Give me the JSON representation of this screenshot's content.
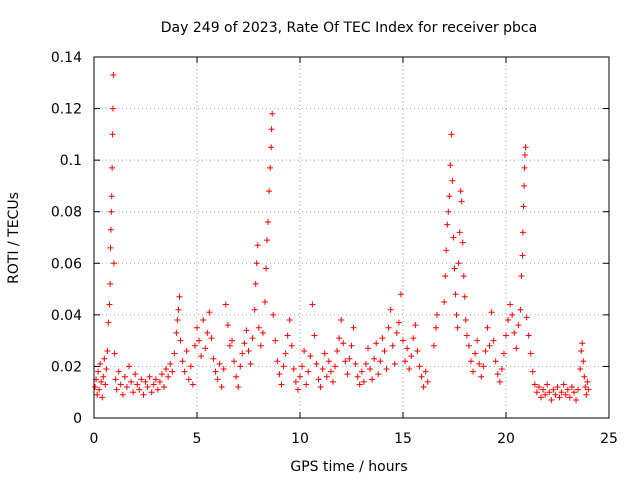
{
  "chart_data": {
    "type": "scatter",
    "title": "Day 249 of 2023, Rate Of TEC Index for receiver pbca",
    "xlabel": "GPS time / hours",
    "ylabel": "ROTI / TECUs",
    "xlim": [
      0,
      25
    ],
    "ylim": [
      0,
      0.14
    ],
    "xticks": [
      "0",
      "5",
      "10",
      "15",
      "20",
      "25"
    ],
    "yticks": [
      "0",
      "0.02",
      "0.04",
      "0.06",
      "0.08",
      "0.1",
      "0.12",
      "0.14"
    ],
    "grid": true,
    "marker": "plus",
    "color": "#ff0000",
    "series": [
      {
        "points": [
          [
            0.05,
            0.012
          ],
          [
            0.1,
            0.015
          ],
          [
            0.15,
            0.009
          ],
          [
            0.2,
            0.018
          ],
          [
            0.25,
            0.011
          ],
          [
            0.3,
            0.021
          ],
          [
            0.35,
            0.014
          ],
          [
            0.4,
            0.008
          ],
          [
            0.45,
            0.016
          ],
          [
            0.5,
            0.023
          ],
          [
            0.55,
            0.013
          ],
          [
            0.6,
            0.019
          ],
          [
            0.65,
            0.026
          ],
          [
            0.7,
            0.037
          ],
          [
            0.75,
            0.044
          ],
          [
            0.78,
            0.052
          ],
          [
            0.8,
            0.066
          ],
          [
            0.82,
            0.073
          ],
          [
            0.84,
            0.08
          ],
          [
            0.86,
            0.086
          ],
          [
            0.88,
            0.097
          ],
          [
            0.9,
            0.11
          ],
          [
            0.92,
            0.12
          ],
          [
            0.94,
            0.133
          ],
          [
            0.97,
            0.06
          ],
          [
            1.0,
            0.025
          ],
          [
            1.05,
            0.015
          ],
          [
            1.1,
            0.011
          ],
          [
            1.2,
            0.018
          ],
          [
            1.3,
            0.013
          ],
          [
            1.4,
            0.009
          ],
          [
            1.5,
            0.016
          ],
          [
            1.6,
            0.012
          ],
          [
            1.7,
            0.02
          ],
          [
            1.8,
            0.014
          ],
          [
            1.9,
            0.01
          ],
          [
            2.0,
            0.017
          ],
          [
            2.1,
            0.013
          ],
          [
            2.2,
            0.011
          ],
          [
            2.3,
            0.015
          ],
          [
            2.4,
            0.009
          ],
          [
            2.5,
            0.014
          ],
          [
            2.6,
            0.012
          ],
          [
            2.7,
            0.016
          ],
          [
            2.8,
            0.01
          ],
          [
            2.9,
            0.013
          ],
          [
            3.0,
            0.015
          ],
          [
            3.1,
            0.011
          ],
          [
            3.2,
            0.014
          ],
          [
            3.3,
            0.017
          ],
          [
            3.4,
            0.012
          ],
          [
            3.5,
            0.019
          ],
          [
            3.6,
            0.016
          ],
          [
            3.7,
            0.021
          ],
          [
            3.8,
            0.018
          ],
          [
            3.9,
            0.025
          ],
          [
            4.0,
            0.033
          ],
          [
            4.05,
            0.038
          ],
          [
            4.1,
            0.042
          ],
          [
            4.15,
            0.047
          ],
          [
            4.2,
            0.03
          ],
          [
            4.3,
            0.022
          ],
          [
            4.4,
            0.018
          ],
          [
            4.5,
            0.026
          ],
          [
            4.6,
            0.015
          ],
          [
            4.7,
            0.02
          ],
          [
            4.8,
            0.013
          ],
          [
            4.9,
            0.028
          ],
          [
            5.0,
            0.035
          ],
          [
            5.1,
            0.03
          ],
          [
            5.2,
            0.024
          ],
          [
            5.3,
            0.038
          ],
          [
            5.4,
            0.027
          ],
          [
            5.5,
            0.033
          ],
          [
            5.6,
            0.041
          ],
          [
            5.7,
            0.031
          ],
          [
            5.8,
            0.023
          ],
          [
            5.9,
            0.018
          ],
          [
            6.0,
            0.015
          ],
          [
            6.1,
            0.021
          ],
          [
            6.2,
            0.012
          ],
          [
            6.3,
            0.019
          ],
          [
            6.4,
            0.044
          ],
          [
            6.5,
            0.036
          ],
          [
            6.6,
            0.028
          ],
          [
            6.7,
            0.03
          ],
          [
            6.8,
            0.022
          ],
          [
            6.9,
            0.016
          ],
          [
            7.0,
            0.012
          ],
          [
            7.1,
            0.02
          ],
          [
            7.2,
            0.025
          ],
          [
            7.3,
            0.029
          ],
          [
            7.4,
            0.034
          ],
          [
            7.5,
            0.026
          ],
          [
            7.6,
            0.021
          ],
          [
            7.7,
            0.031
          ],
          [
            7.8,
            0.042
          ],
          [
            7.85,
            0.052
          ],
          [
            7.9,
            0.06
          ],
          [
            7.95,
            0.067
          ],
          [
            8.0,
            0.035
          ],
          [
            8.1,
            0.028
          ],
          [
            8.2,
            0.033
          ],
          [
            8.3,
            0.045
          ],
          [
            8.35,
            0.058
          ],
          [
            8.4,
            0.069
          ],
          [
            8.45,
            0.076
          ],
          [
            8.5,
            0.088
          ],
          [
            8.55,
            0.097
          ],
          [
            8.6,
            0.105
          ],
          [
            8.62,
            0.112
          ],
          [
            8.65,
            0.118
          ],
          [
            8.7,
            0.04
          ],
          [
            8.8,
            0.03
          ],
          [
            8.9,
            0.022
          ],
          [
            9.0,
            0.017
          ],
          [
            9.1,
            0.013
          ],
          [
            9.2,
            0.02
          ],
          [
            9.3,
            0.025
          ],
          [
            9.4,
            0.032
          ],
          [
            9.5,
            0.038
          ],
          [
            9.6,
            0.028
          ],
          [
            9.7,
            0.019
          ],
          [
            9.8,
            0.014
          ],
          [
            9.9,
            0.011
          ],
          [
            10.0,
            0.016
          ],
          [
            10.1,
            0.02
          ],
          [
            10.2,
            0.026
          ],
          [
            10.3,
            0.013
          ],
          [
            10.4,
            0.018
          ],
          [
            10.5,
            0.024
          ],
          [
            10.6,
            0.044
          ],
          [
            10.7,
            0.032
          ],
          [
            10.8,
            0.021
          ],
          [
            10.9,
            0.015
          ],
          [
            11.0,
            0.012
          ],
          [
            11.1,
            0.019
          ],
          [
            11.2,
            0.025
          ],
          [
            11.3,
            0.016
          ],
          [
            11.4,
            0.022
          ],
          [
            11.5,
            0.018
          ],
          [
            11.6,
            0.014
          ],
          [
            11.7,
            0.02
          ],
          [
            11.8,
            0.026
          ],
          [
            11.9,
            0.031
          ],
          [
            12.0,
            0.038
          ],
          [
            12.1,
            0.029
          ],
          [
            12.2,
            0.022
          ],
          [
            12.3,
            0.017
          ],
          [
            12.4,
            0.023
          ],
          [
            12.5,
            0.028
          ],
          [
            12.6,
            0.035
          ],
          [
            12.7,
            0.021
          ],
          [
            12.8,
            0.016
          ],
          [
            12.9,
            0.013
          ],
          [
            13.0,
            0.018
          ],
          [
            13.1,
            0.014
          ],
          [
            13.2,
            0.021
          ],
          [
            13.3,
            0.027
          ],
          [
            13.4,
            0.019
          ],
          [
            13.5,
            0.015
          ],
          [
            13.6,
            0.023
          ],
          [
            13.7,
            0.029
          ],
          [
            13.8,
            0.017
          ],
          [
            13.9,
            0.022
          ],
          [
            14.0,
            0.031
          ],
          [
            14.1,
            0.026
          ],
          [
            14.2,
            0.019
          ],
          [
            14.3,
            0.035
          ],
          [
            14.4,
            0.042
          ],
          [
            14.5,
            0.028
          ],
          [
            14.6,
            0.021
          ],
          [
            14.7,
            0.033
          ],
          [
            14.8,
            0.037
          ],
          [
            14.9,
            0.048
          ],
          [
            15.0,
            0.03
          ],
          [
            15.1,
            0.022
          ],
          [
            15.2,
            0.027
          ],
          [
            15.3,
            0.019
          ],
          [
            15.4,
            0.024
          ],
          [
            15.5,
            0.031
          ],
          [
            15.6,
            0.036
          ],
          [
            15.7,
            0.026
          ],
          [
            15.8,
            0.02
          ],
          [
            15.9,
            0.016
          ],
          [
            16.0,
            0.012
          ],
          [
            16.1,
            0.018
          ],
          [
            16.2,
            0.014
          ],
          [
            16.5,
            0.028
          ],
          [
            16.6,
            0.035
          ],
          [
            16.65,
            0.04
          ],
          [
            17.0,
            0.045
          ],
          [
            17.05,
            0.055
          ],
          [
            17.1,
            0.065
          ],
          [
            17.15,
            0.075
          ],
          [
            17.2,
            0.08
          ],
          [
            17.25,
            0.086
          ],
          [
            17.3,
            0.098
          ],
          [
            17.35,
            0.11
          ],
          [
            17.4,
            0.092
          ],
          [
            17.45,
            0.07
          ],
          [
            17.5,
            0.058
          ],
          [
            17.55,
            0.048
          ],
          [
            17.6,
            0.04
          ],
          [
            17.65,
            0.035
          ],
          [
            17.7,
            0.06
          ],
          [
            17.75,
            0.072
          ],
          [
            17.8,
            0.088
          ],
          [
            17.85,
            0.084
          ],
          [
            17.9,
            0.068
          ],
          [
            17.95,
            0.055
          ],
          [
            18.0,
            0.047
          ],
          [
            18.05,
            0.038
          ],
          [
            18.1,
            0.032
          ],
          [
            18.2,
            0.028
          ],
          [
            18.3,
            0.022
          ],
          [
            18.4,
            0.018
          ],
          [
            18.5,
            0.025
          ],
          [
            18.6,
            0.03
          ],
          [
            18.7,
            0.021
          ],
          [
            18.8,
            0.016
          ],
          [
            18.9,
            0.02
          ],
          [
            19.0,
            0.026
          ],
          [
            19.1,
            0.035
          ],
          [
            19.2,
            0.028
          ],
          [
            19.3,
            0.041
          ],
          [
            19.4,
            0.03
          ],
          [
            19.5,
            0.022
          ],
          [
            19.6,
            0.017
          ],
          [
            19.7,
            0.014
          ],
          [
            19.8,
            0.019
          ],
          [
            19.9,
            0.025
          ],
          [
            20.0,
            0.032
          ],
          [
            20.1,
            0.038
          ],
          [
            20.2,
            0.044
          ],
          [
            20.3,
            0.04
          ],
          [
            20.4,
            0.033
          ],
          [
            20.5,
            0.027
          ],
          [
            20.6,
            0.036
          ],
          [
            20.7,
            0.042
          ],
          [
            20.75,
            0.055
          ],
          [
            20.8,
            0.063
          ],
          [
            20.82,
            0.072
          ],
          [
            20.85,
            0.082
          ],
          [
            20.88,
            0.09
          ],
          [
            20.9,
            0.097
          ],
          [
            20.92,
            0.102
          ],
          [
            20.95,
            0.105
          ],
          [
            21.0,
            0.039
          ],
          [
            21.1,
            0.032
          ],
          [
            21.2,
            0.025
          ],
          [
            21.3,
            0.018
          ],
          [
            21.4,
            0.013
          ],
          [
            21.5,
            0.01
          ],
          [
            21.6,
            0.012
          ],
          [
            21.7,
            0.008
          ],
          [
            21.8,
            0.011
          ],
          [
            21.9,
            0.009
          ],
          [
            22.0,
            0.013
          ],
          [
            22.1,
            0.01
          ],
          [
            22.2,
            0.007
          ],
          [
            22.3,
            0.011
          ],
          [
            22.4,
            0.009
          ],
          [
            22.5,
            0.012
          ],
          [
            22.6,
            0.008
          ],
          [
            22.7,
            0.01
          ],
          [
            22.8,
            0.013
          ],
          [
            22.9,
            0.009
          ],
          [
            23.0,
            0.011
          ],
          [
            23.1,
            0.008
          ],
          [
            23.2,
            0.012
          ],
          [
            23.3,
            0.01
          ],
          [
            23.4,
            0.007
          ],
          [
            23.5,
            0.011
          ],
          [
            23.6,
            0.019
          ],
          [
            23.65,
            0.026
          ],
          [
            23.7,
            0.029
          ],
          [
            23.75,
            0.022
          ],
          [
            23.8,
            0.016
          ],
          [
            23.85,
            0.012
          ],
          [
            23.9,
            0.009
          ],
          [
            23.95,
            0.014
          ],
          [
            24.0,
            0.011
          ]
        ]
      }
    ]
  }
}
